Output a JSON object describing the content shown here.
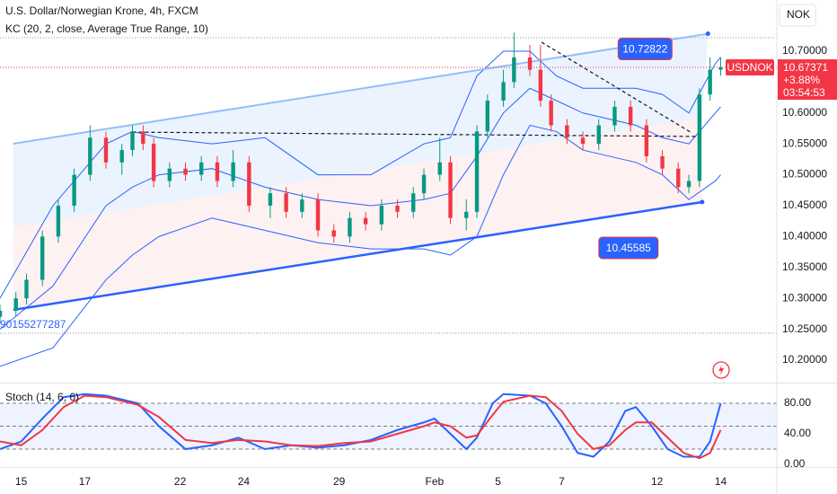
{
  "chart_data": [
    {
      "type": "candlestick",
      "title": "U.S. Dollar/Norwegian Krone, 4h, FXCM",
      "indicator": "KC (20, 2, close, Average True Range, 10)",
      "currency": "NOK",
      "symbol": "USDNOK",
      "last_price": 10.67371,
      "change": {
        "value": 3.88,
        "label": "+3.88%"
      },
      "countdown": "03:54:53",
      "cut_label": "90155277287",
      "up_color": "#089981",
      "down_color": "#f23645",
      "x": [
        0,
        3,
        5,
        8,
        11,
        14,
        17,
        20,
        23,
        25,
        27,
        29,
        32,
        35,
        38,
        41,
        44,
        47,
        51,
        54,
        57,
        60,
        63,
        66,
        69,
        72,
        75,
        78,
        80,
        83,
        85,
        88,
        90,
        92,
        95,
        97,
        100,
        102,
        104,
        107,
        110,
        113,
        116,
        119,
        122,
        125,
        128,
        130,
        132,
        134,
        136
      ],
      "open": [
        10.27,
        10.28,
        10.3,
        10.33,
        10.4,
        10.45,
        10.5,
        10.56,
        10.52,
        10.54,
        10.57,
        10.55,
        10.49,
        10.51,
        10.5,
        10.52,
        10.49,
        10.52,
        10.45,
        10.47,
        10.44,
        10.46,
        10.41,
        10.4,
        10.43,
        10.42,
        10.45,
        10.44,
        10.47,
        10.5,
        10.52,
        10.43,
        10.44,
        10.57,
        10.62,
        10.65,
        10.69,
        10.67,
        10.62,
        10.58,
        10.56,
        10.55,
        10.58,
        10.61,
        10.58,
        10.53,
        10.51,
        10.48,
        10.49,
        10.63,
        10.67
      ],
      "high": [
        10.29,
        10.31,
        10.34,
        10.41,
        10.46,
        10.51,
        10.58,
        10.57,
        10.55,
        10.58,
        10.58,
        10.56,
        10.52,
        10.52,
        10.53,
        10.53,
        10.54,
        10.53,
        10.48,
        10.48,
        10.47,
        10.47,
        10.42,
        10.44,
        10.44,
        10.46,
        10.46,
        10.48,
        10.51,
        10.56,
        10.53,
        10.46,
        10.58,
        10.63,
        10.67,
        10.73,
        10.71,
        10.71,
        10.63,
        10.59,
        10.57,
        10.59,
        10.62,
        10.62,
        10.59,
        10.54,
        10.52,
        10.5,
        10.64,
        10.69,
        10.69
      ],
      "low": [
        10.26,
        10.27,
        10.29,
        10.32,
        10.39,
        10.44,
        10.49,
        10.51,
        10.5,
        10.53,
        10.54,
        10.48,
        10.48,
        10.49,
        10.49,
        10.48,
        10.48,
        10.44,
        10.43,
        10.43,
        10.43,
        10.4,
        10.39,
        10.39,
        10.41,
        10.41,
        10.43,
        10.43,
        10.46,
        10.49,
        10.42,
        10.41,
        10.43,
        10.56,
        10.61,
        10.64,
        10.66,
        10.61,
        10.57,
        10.55,
        10.54,
        10.54,
        10.57,
        10.57,
        10.52,
        10.5,
        10.47,
        10.47,
        10.48,
        10.62,
        10.66
      ],
      "close": [
        10.28,
        10.3,
        10.33,
        10.4,
        10.45,
        10.5,
        10.56,
        10.52,
        10.54,
        10.57,
        10.55,
        10.49,
        10.51,
        10.5,
        10.52,
        10.49,
        10.52,
        10.45,
        10.47,
        10.44,
        10.46,
        10.41,
        10.4,
        10.43,
        10.42,
        10.45,
        10.44,
        10.47,
        10.5,
        10.52,
        10.43,
        10.44,
        10.57,
        10.62,
        10.65,
        10.69,
        10.67,
        10.62,
        10.58,
        10.56,
        10.55,
        10.58,
        10.61,
        10.58,
        10.53,
        10.51,
        10.48,
        10.49,
        10.63,
        10.67,
        10.67371
      ],
      "xlim": [
        0,
        146.6
      ],
      "xticks": [
        {
          "value": 4,
          "label": "15"
        },
        {
          "value": 16,
          "label": "17"
        },
        {
          "value": 34,
          "label": "22"
        },
        {
          "value": 46,
          "label": "24"
        },
        {
          "value": 64,
          "label": "29"
        },
        {
          "value": 82,
          "label": "Feb"
        },
        {
          "value": 94,
          "label": "5"
        },
        {
          "value": 106,
          "label": "7"
        },
        {
          "value": 124,
          "label": "12"
        },
        {
          "value": 136,
          "label": "14"
        }
      ],
      "ylim": [
        10.1651,
        10.7828
      ],
      "yticks": [
        {
          "value": 10.7,
          "label": "10.70000"
        },
        {
          "value": 10.6,
          "label": "10.60000"
        },
        {
          "value": 10.55,
          "label": "10.55000"
        },
        {
          "value": 10.5,
          "label": "10.50000"
        },
        {
          "value": 10.45,
          "label": "10.45000"
        },
        {
          "value": 10.4,
          "label": "10.40000"
        },
        {
          "value": 10.35,
          "label": "10.35000"
        },
        {
          "value": 10.3,
          "label": "10.30000"
        },
        {
          "value": 10.25,
          "label": "10.25000"
        },
        {
          "value": 10.2,
          "label": "10.20000"
        }
      ],
      "keltner": {
        "color": "#2962ff",
        "x": [
          0,
          10,
          20,
          25,
          30,
          40,
          50,
          60,
          70,
          80,
          85,
          90,
          95,
          100,
          105,
          110,
          115,
          120,
          125,
          130,
          135,
          136
        ],
        "upper": [
          10.3,
          10.45,
          10.55,
          10.57,
          10.56,
          10.55,
          10.56,
          10.5,
          10.5,
          10.55,
          10.56,
          10.66,
          10.7,
          10.7,
          10.66,
          10.64,
          10.64,
          10.64,
          10.63,
          10.6,
          10.68,
          10.69
        ],
        "middle": [
          10.25,
          10.32,
          10.45,
          10.48,
          10.5,
          10.51,
          10.48,
          10.46,
          10.45,
          10.46,
          10.47,
          10.53,
          10.6,
          10.64,
          10.62,
          10.6,
          10.59,
          10.58,
          10.56,
          10.55,
          10.6,
          10.61
        ],
        "lower": [
          10.19,
          10.22,
          10.33,
          10.37,
          10.4,
          10.43,
          10.41,
          10.39,
          10.38,
          10.38,
          10.37,
          10.4,
          10.5,
          10.58,
          10.57,
          10.54,
          10.53,
          10.52,
          10.5,
          10.46,
          10.49,
          10.5
        ]
      },
      "trendlines": [
        {
          "x": [
            2.5,
            132.5
          ],
          "y": [
            10.2814,
            10.45585
          ],
          "color": "#2962ff"
        },
        {
          "x": [
            2.5,
            133.6
          ],
          "y": [
            10.5503,
            10.72822
          ],
          "color": "#90bff9"
        }
      ],
      "dashed_lines": [
        {
          "x": [
            25,
            131.4
          ],
          "y": [
            10.569,
            10.562
          ]
        },
        {
          "x": [
            102.2,
            130.5
          ],
          "y": [
            10.7145,
            10.568
          ]
        }
      ],
      "levels": [
        10.7218,
        10.2436
      ]
    },
    {
      "type": "line",
      "title": "Stoch (14, 6, 6)",
      "x": [
        0,
        4,
        8,
        12,
        16,
        20,
        26,
        30,
        35,
        40,
        45,
        50,
        55,
        60,
        65,
        70,
        75,
        80,
        82,
        85,
        88,
        90,
        93,
        95,
        100,
        103,
        106,
        109,
        112,
        115,
        118,
        120,
        123,
        126,
        129,
        132,
        134,
        136
      ],
      "series": [
        {
          "color": "#2962ff",
          "values": [
            20,
            30,
            60,
            88,
            92,
            90,
            80,
            50,
            20,
            25,
            35,
            20,
            25,
            22,
            25,
            32,
            45,
            55,
            60,
            40,
            20,
            35,
            80,
            92,
            90,
            80,
            50,
            15,
            10,
            30,
            70,
            75,
            50,
            20,
            10,
            10,
            30,
            80
          ]
        },
        {
          "color": "#f23645",
          "values": [
            30,
            25,
            45,
            75,
            90,
            88,
            78,
            62,
            32,
            28,
            32,
            30,
            25,
            24,
            28,
            30,
            40,
            50,
            55,
            50,
            35,
            38,
            65,
            82,
            90,
            88,
            70,
            40,
            20,
            25,
            45,
            55,
            55,
            35,
            15,
            8,
            15,
            45
          ]
        }
      ],
      "ylim": [
        -3.5,
        104.7
      ],
      "yticks": [
        {
          "value": 80,
          "label": "80.00"
        },
        {
          "value": 40,
          "label": "40.00"
        },
        {
          "value": 0,
          "label": "0.00"
        }
      ],
      "levels": [
        80,
        50,
        20
      ]
    }
  ]
}
